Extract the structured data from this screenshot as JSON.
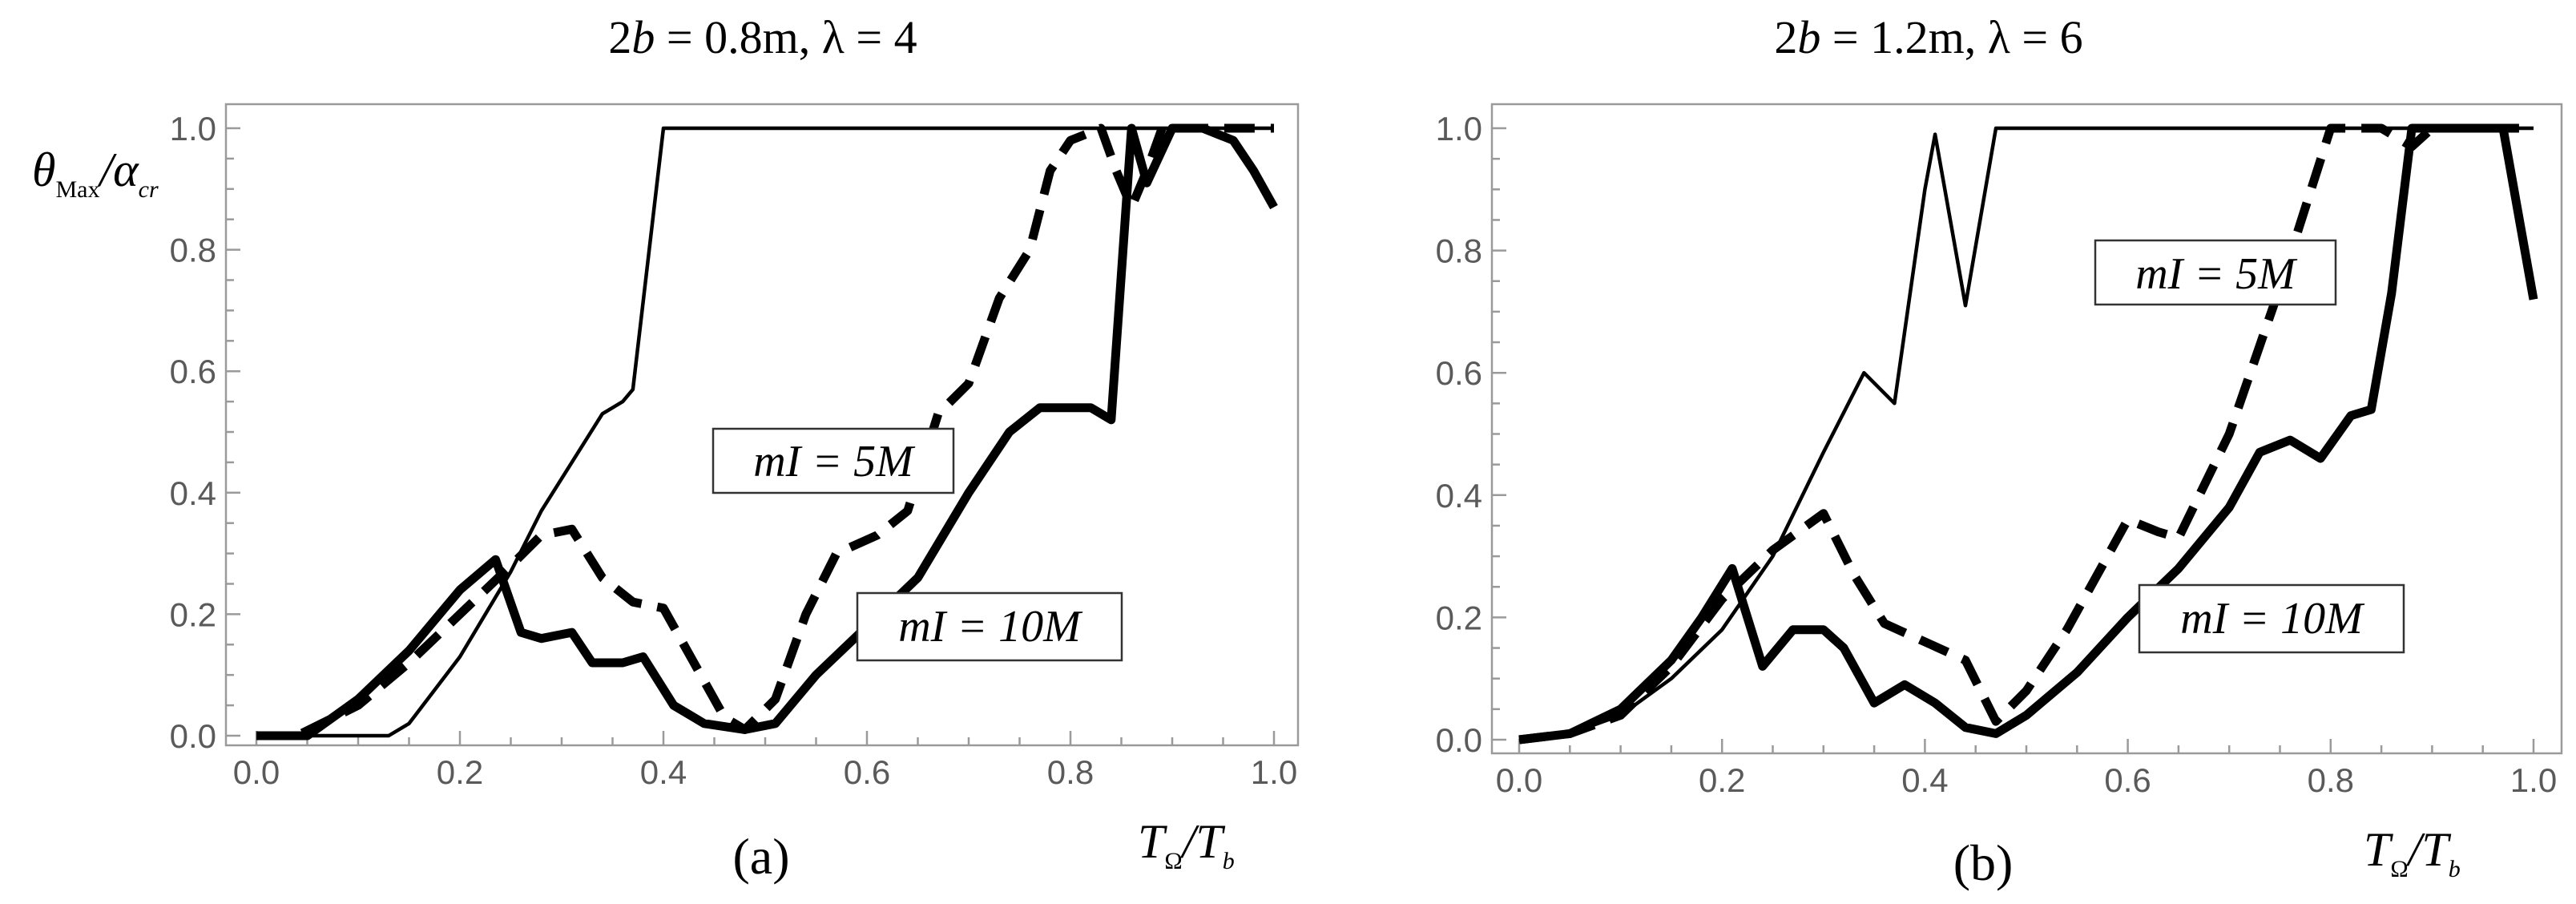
{
  "chart_data": [
    {
      "type": "line",
      "title": "2b = 0.8m, λ = 4",
      "title_parts": {
        "lhs_num": "2",
        "lhs_var": "b",
        "eq1": " = 0.8m, ",
        "lam": "λ",
        "eq2": " = 4"
      },
      "caption": "(a)",
      "ylabel": {
        "theta": "θ",
        "theta_sub": "Max",
        "slash": "/",
        "alpha": "α",
        "alpha_sub": "cr"
      },
      "xlabel": {
        "T": "T",
        "T_sub": "Ω",
        "slash": "/",
        "T2": "T",
        "T2_sub": "b"
      },
      "xlim": [
        0,
        1
      ],
      "ylim": [
        0,
        1
      ],
      "xticks": [
        "0.0",
        "0.2",
        "0.4",
        "0.6",
        "0.8",
        "1.0"
      ],
      "yticks": [
        "0.0",
        "0.2",
        "0.4",
        "0.6",
        "0.8",
        "1.0"
      ],
      "annotations": [
        {
          "text": "mI = 5M",
          "series": "mI = 5M"
        },
        {
          "text": "mI = 10M",
          "series": "mI = 10M"
        }
      ],
      "series": [
        {
          "name": "thin",
          "style": "thin-solid",
          "x": [
            0.0,
            0.13,
            0.15,
            0.2,
            0.25,
            0.28,
            0.31,
            0.34,
            0.36,
            0.37,
            0.4,
            0.45,
            0.6,
            0.8,
            0.9,
            1.0
          ],
          "y": [
            0.0,
            0.0,
            0.02,
            0.13,
            0.27,
            0.37,
            0.45,
            0.53,
            0.55,
            0.57,
            1.0,
            1.0,
            1.0,
            1.0,
            1.0,
            1.0
          ]
        },
        {
          "name": "mI = 5M",
          "style": "dashed",
          "x": [
            0.0,
            0.04,
            0.1,
            0.15,
            0.2,
            0.25,
            0.28,
            0.31,
            0.34,
            0.37,
            0.4,
            0.43,
            0.46,
            0.48,
            0.51,
            0.54,
            0.57,
            0.61,
            0.64,
            0.67,
            0.7,
            0.73,
            0.76,
            0.78,
            0.8,
            0.83,
            0.845,
            0.86,
            0.875,
            0.89,
            0.91,
            0.95,
            1.0
          ],
          "y": [
            0.0,
            0.0,
            0.05,
            0.12,
            0.2,
            0.28,
            0.33,
            0.34,
            0.26,
            0.22,
            0.21,
            0.12,
            0.03,
            0.01,
            0.06,
            0.2,
            0.3,
            0.33,
            0.37,
            0.53,
            0.58,
            0.72,
            0.8,
            0.93,
            0.98,
            1.0,
            0.93,
            0.87,
            0.93,
            1.0,
            1.0,
            1.0,
            1.0
          ]
        },
        {
          "name": "mI = 10M",
          "style": "thick-solid",
          "x": [
            0.0,
            0.05,
            0.1,
            0.15,
            0.2,
            0.235,
            0.26,
            0.28,
            0.31,
            0.33,
            0.36,
            0.38,
            0.41,
            0.44,
            0.48,
            0.51,
            0.55,
            0.6,
            0.65,
            0.7,
            0.74,
            0.77,
            0.8,
            0.82,
            0.84,
            0.86,
            0.875,
            0.9,
            0.93,
            0.96,
            0.98,
            1.0
          ],
          "y": [
            0.0,
            0.0,
            0.06,
            0.14,
            0.24,
            0.29,
            0.17,
            0.16,
            0.17,
            0.12,
            0.12,
            0.13,
            0.05,
            0.02,
            0.01,
            0.02,
            0.1,
            0.18,
            0.26,
            0.4,
            0.5,
            0.54,
            0.54,
            0.54,
            0.52,
            1.0,
            0.91,
            1.0,
            1.0,
            0.98,
            0.93,
            0.87
          ]
        }
      ]
    },
    {
      "type": "line",
      "title": "2b = 1.2m, λ = 6",
      "title_parts": {
        "lhs_num": "2",
        "lhs_var": "b",
        "eq1": " = 1.2m, ",
        "lam": "λ",
        "eq2": " = 6"
      },
      "caption": "(b)",
      "xlabel": {
        "T": "T",
        "T_sub": "Ω",
        "slash": "/",
        "T2": "T",
        "T2_sub": "b"
      },
      "xlim": [
        0,
        1
      ],
      "ylim": [
        0,
        1
      ],
      "xticks": [
        "0.0",
        "0.2",
        "0.4",
        "0.6",
        "0.8",
        "1.0"
      ],
      "yticks": [
        "0.0",
        "0.2",
        "0.4",
        "0.6",
        "0.8",
        "1.0"
      ],
      "annotations": [
        {
          "text": "mI = 5M",
          "series": "mI = 5M"
        },
        {
          "text": "mI = 10M",
          "series": "mI = 10M"
        }
      ],
      "series": [
        {
          "name": "thin",
          "style": "thin-solid",
          "x": [
            0.0,
            0.05,
            0.1,
            0.15,
            0.2,
            0.25,
            0.3,
            0.34,
            0.37,
            0.4,
            0.41,
            0.44,
            0.47,
            0.5,
            0.6,
            0.8,
            1.0
          ],
          "y": [
            0.0,
            0.01,
            0.04,
            0.1,
            0.18,
            0.3,
            0.47,
            0.6,
            0.55,
            0.9,
            0.99,
            0.71,
            1.0,
            1.0,
            1.0,
            1.0,
            1.0
          ]
        },
        {
          "name": "mI = 5M",
          "style": "dashed",
          "x": [
            0.0,
            0.05,
            0.1,
            0.15,
            0.2,
            0.25,
            0.3,
            0.33,
            0.36,
            0.4,
            0.44,
            0.47,
            0.5,
            0.54,
            0.58,
            0.6,
            0.63,
            0.65,
            0.7,
            0.75,
            0.8,
            0.85,
            0.88,
            0.9,
            1.0
          ],
          "y": [
            0.0,
            0.01,
            0.04,
            0.12,
            0.23,
            0.31,
            0.37,
            0.27,
            0.19,
            0.16,
            0.13,
            0.03,
            0.08,
            0.18,
            0.3,
            0.36,
            0.34,
            0.33,
            0.5,
            0.74,
            1.0,
            1.0,
            0.97,
            1.0,
            1.0
          ]
        },
        {
          "name": "mI = 10M",
          "style": "thick-solid",
          "x": [
            0.0,
            0.05,
            0.1,
            0.15,
            0.18,
            0.21,
            0.24,
            0.27,
            0.3,
            0.32,
            0.35,
            0.38,
            0.41,
            0.44,
            0.47,
            0.5,
            0.55,
            0.6,
            0.65,
            0.7,
            0.73,
            0.76,
            0.79,
            0.82,
            0.84,
            0.86,
            0.88,
            0.9,
            0.93,
            0.97,
            1.0
          ],
          "y": [
            0.0,
            0.01,
            0.05,
            0.13,
            0.2,
            0.28,
            0.12,
            0.18,
            0.18,
            0.15,
            0.06,
            0.09,
            0.06,
            0.02,
            0.01,
            0.04,
            0.11,
            0.2,
            0.28,
            0.38,
            0.47,
            0.49,
            0.46,
            0.53,
            0.54,
            0.73,
            1.0,
            1.0,
            1.0,
            1.0,
            0.72
          ]
        }
      ]
    }
  ]
}
